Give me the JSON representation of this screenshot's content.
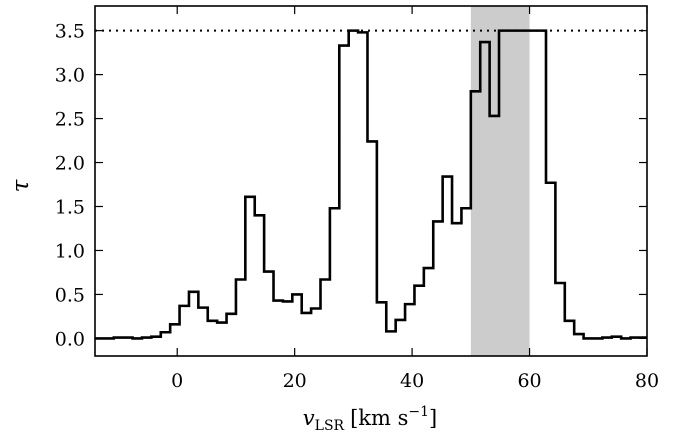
{
  "chart_data": {
    "type": "line",
    "style": "step",
    "xlabel": {
      "main": "v",
      "subscript": "LSR",
      "units_open": "[km s",
      "units_sup": "−1",
      "units_close": "]"
    },
    "ylabel": "τ",
    "xlim": [
      -14,
      80
    ],
    "ylim": [
      -0.2,
      3.78
    ],
    "xticks": [
      0,
      20,
      40,
      60,
      80
    ],
    "yticks": [
      0.0,
      0.5,
      1.0,
      1.5,
      2.0,
      2.5,
      3.0,
      3.5
    ],
    "xtick_labels": [
      "0",
      "20",
      "40",
      "60",
      "80"
    ],
    "ytick_labels": [
      "0.0",
      "0.5",
      "1.0",
      "1.5",
      "2.0",
      "2.5",
      "3.0",
      "3.5"
    ],
    "grid": false,
    "saturation_level": 3.5,
    "shaded_region": [
      50,
      60
    ],
    "shaded_color": "#cccccc",
    "line_color": "#000000",
    "bin_width": 1.6,
    "series": [
      {
        "x": [
          -14,
          -12.4,
          -10.8,
          -9.2,
          -7.6,
          -6,
          -4.4,
          -2.8,
          -1.2,
          0.4,
          2,
          3.6,
          5.2,
          6.8,
          8.4,
          10,
          11.6,
          13.2,
          14.8,
          16.4,
          18,
          19.6,
          21.2,
          22.8,
          24.4,
          26,
          27.6,
          29.2,
          30.8,
          32.4,
          34,
          35.6,
          37.2,
          38.8,
          40.4,
          42,
          43.6,
          45.2,
          46.8,
          48.4,
          50,
          51.6,
          53.2,
          54.8,
          56.4,
          58,
          59.6,
          61.2,
          62.8,
          64.4,
          66,
          67.6,
          69.2,
          70.8,
          72.4,
          74,
          75.6,
          77.2,
          78.8
        ],
        "y": [
          0.0,
          0.0,
          0.01,
          0.01,
          0.0,
          0.01,
          0.02,
          0.07,
          0.16,
          0.37,
          0.53,
          0.35,
          0.2,
          0.18,
          0.28,
          0.67,
          1.61,
          1.4,
          0.76,
          0.43,
          0.42,
          0.5,
          0.29,
          0.34,
          0.67,
          1.48,
          3.33,
          3.5,
          3.48,
          2.24,
          0.41,
          0.08,
          0.21,
          0.39,
          0.6,
          0.8,
          1.33,
          1.84,
          1.31,
          1.48,
          2.81,
          3.37,
          2.53,
          3.5,
          3.5,
          3.5,
          3.5,
          3.5,
          1.77,
          0.63,
          0.2,
          0.05,
          0.0,
          0.0,
          0.01,
          0.02,
          0.0,
          0.01,
          0.01
        ]
      }
    ]
  }
}
